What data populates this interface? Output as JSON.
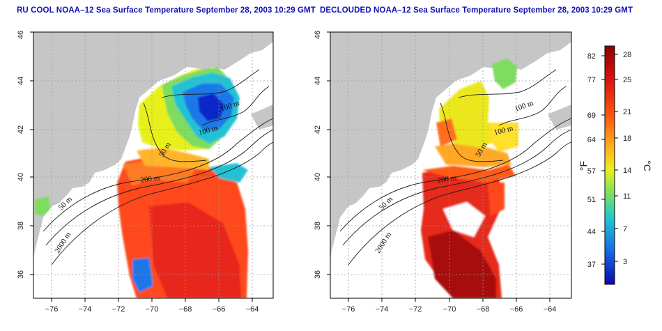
{
  "panels": [
    {
      "id": "left",
      "title": "RU COOL NOAA–12 Sea Surface Temperature September 28, 2003 10:29 GMT",
      "contour_labels": [
        "100 m",
        "100 m",
        "50 m",
        "200 m",
        "50 m",
        "2000 m"
      ]
    },
    {
      "id": "right",
      "title": "DECLOUDED NOAA–12 Sea Surface Temperature September 28, 2003 10:29 GMT",
      "contour_labels": [
        "100 m",
        "100 m",
        "50 m",
        "200 m",
        "50 m",
        "2000 m"
      ]
    }
  ],
  "axes": {
    "lon_ticks": [
      "−76",
      "−74",
      "−72",
      "−70",
      "−68",
      "−66",
      "−64"
    ],
    "lat_ticks": [
      "36",
      "38",
      "40",
      "42",
      "44",
      "46"
    ],
    "lon_range": [
      -77.2,
      -62.9
    ],
    "lat_range": [
      35,
      46
    ],
    "grid": true
  },
  "colorbar": {
    "fahrenheit_ticks": [
      "82",
      "77",
      "69",
      "64",
      "57",
      "51",
      "44",
      "37"
    ],
    "celsius_ticks": [
      "28",
      "25",
      "21",
      "18",
      "14",
      "11",
      "7",
      "3"
    ],
    "fahrenheit_unit": "°F",
    "celsius_unit": "°C",
    "colors": [
      "#8b0000",
      "#d81010",
      "#ff5a10",
      "#ffae20",
      "#e9ef20",
      "#78e060",
      "#20c8d0",
      "#1870e8",
      "#0a0ab0"
    ]
  },
  "colors": {
    "land": "#c6c6c6",
    "title": "#1010b8",
    "background": "#ffffff"
  }
}
